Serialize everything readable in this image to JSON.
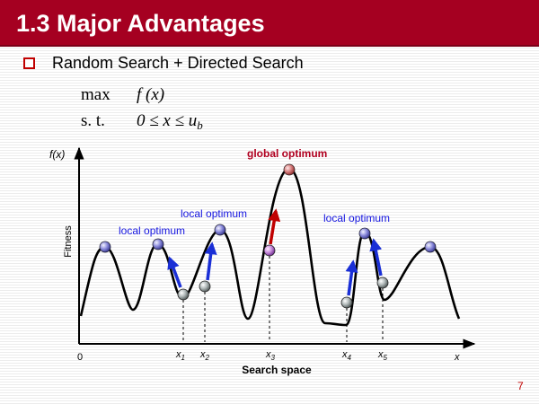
{
  "slide": {
    "title": "1.3 Major Advantages",
    "bullet": "Random Search + Directed Search",
    "page_number": "7"
  },
  "formula": {
    "max_kw": "max",
    "objective": "f (x)",
    "st_kw": "s. t.",
    "constraint_prefix": "0 ≤ x ≤ u",
    "constraint_sub": "b"
  },
  "diagram": {
    "y_axis_label": "f(x)",
    "y_caption": "Fitness",
    "x_axis_label": "x",
    "origin_label": "0",
    "x_caption": "Search space",
    "annotations": {
      "local_1": "local optimum",
      "local_2": "local optimum",
      "local_3": "local optimum",
      "global": "global optimum"
    },
    "marks": {
      "x1": "x",
      "x1_sub": "1",
      "x2": "x",
      "x2_sub": "2",
      "x3": "x",
      "x3_sub": "3",
      "x4": "x",
      "x4_sub": "4",
      "x5": "x",
      "x5_sub": "5"
    },
    "colors": {
      "title_bar": "#a50021",
      "local_label": "#1515e0",
      "global_label": "#b00020",
      "arrow_blue": "#1a2fd6",
      "arrow_red": "#c00000"
    }
  }
}
